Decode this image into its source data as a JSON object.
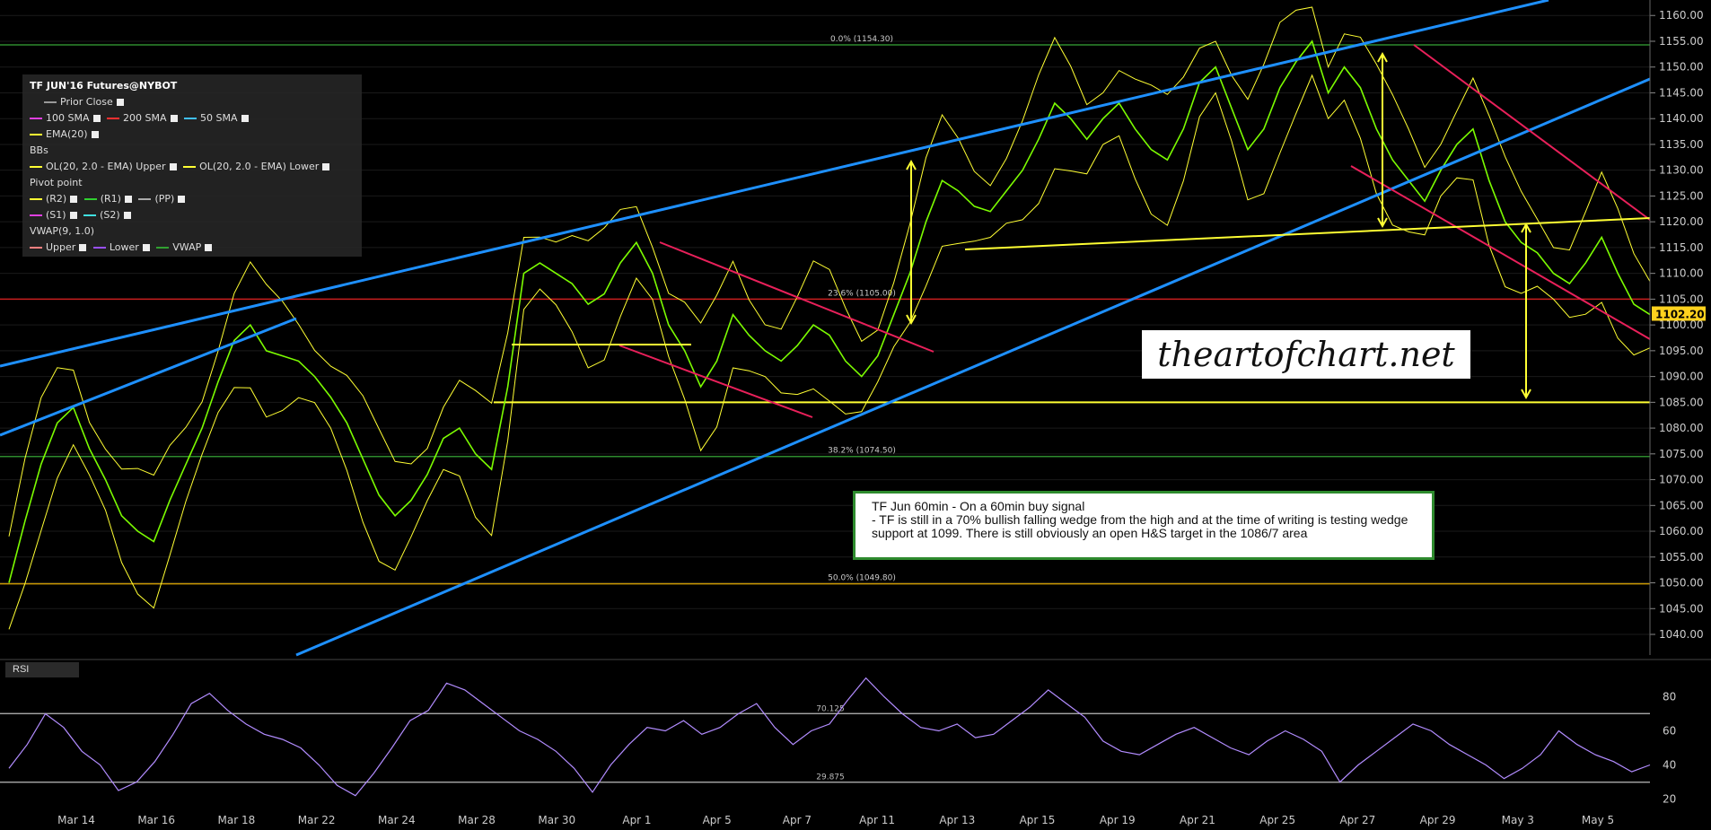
{
  "legend": {
    "title": "TF JUN'16 Futures@NYBOT",
    "prior_close": "Prior Close",
    "sma100": "100 SMA",
    "sma200": "200 SMA",
    "sma50": "50 SMA",
    "ema20": "EMA(20)",
    "bbs": "BBs",
    "bb_upper": "OL(20, 2.0 - EMA) Upper",
    "bb_lower": "OL(20, 2.0 - EMA) Lower",
    "pivot": "Pivot point",
    "r2": "(R2)",
    "r1": "(R1)",
    "pp": "(PP)",
    "s1": "(S1)",
    "s2": "(S2)",
    "vwap_title": "VWAP(9, 1.0)",
    "vwap_upper": "Upper",
    "vwap_lower": "Lower",
    "vwap": "VWAP"
  },
  "note": {
    "line1": "TF Jun 60min - On a 60min buy signal",
    "line2": "- TF is still in a 70% bullish falling wedge from the high and at the time of writing is testing wedge support at 1099. There is still obviously an open H&S target in the 1086/7 area"
  },
  "watermark": "theartofchart.net",
  "rsi_label": "RSI",
  "colors": {
    "trend_blue": "#1e90ff",
    "wedge_red": "#e8205a",
    "level_yellow": "#ffff33",
    "price_green": "#7cfc00",
    "rsi": "#b28cff",
    "fib_green": "#2e8b2e",
    "close_red": "#c81e1e"
  },
  "chart_data": [
    {
      "type": "line",
      "title": "",
      "x_tick_labels": [
        "Mar 14",
        "Mar 16",
        "Mar 18",
        "Mar 22",
        "Mar 24",
        "Mar 28",
        "Mar 30",
        "Apr 1",
        "Apr 5",
        "Apr 7",
        "Apr 11",
        "Apr 13",
        "Apr 15",
        "Apr 19",
        "Apr 21",
        "Apr 25",
        "Apr 27",
        "Apr 29",
        "May 3",
        "May 5"
      ],
      "y_tick_labels": [
        "1040.00",
        "1045.00",
        "1050.00",
        "1055.00",
        "1060.00",
        "1065.00",
        "1070.00",
        "1075.00",
        "1080.00",
        "1085.00",
        "1090.00",
        "1095.00",
        "1100.00",
        "1105.00",
        "1110.00",
        "1115.00",
        "1120.00",
        "1125.00",
        "1130.00",
        "1135.00",
        "1140.00",
        "1145.00",
        "1150.00",
        "1155.00",
        "1160.00"
      ],
      "ylim": [
        1036,
        1163
      ],
      "current_price": "1102.20",
      "fib_levels": [
        {
          "label": "0.0% (1154.30)",
          "value": 1154.3
        },
        {
          "label": "23.6% (1105.00)",
          "value": 1105.0
        },
        {
          "label": "38.2% (1074.50)",
          "value": 1074.5
        },
        {
          "label": "50.0% (1049.80)",
          "value": 1049.8
        }
      ],
      "support_level": 1085,
      "series": [
        {
          "values": [
            1050,
            1062,
            1073,
            1081,
            1084,
            1076,
            1070,
            1063,
            1060,
            1058,
            1066,
            1073,
            1080,
            1089,
            1097,
            1100,
            1095,
            1094,
            1093,
            1090,
            1086,
            1081,
            1074,
            1067,
            1063,
            1066,
            1071,
            1078,
            1080,
            1075,
            1072,
            1088,
            1110,
            1112,
            1110,
            1108,
            1104,
            1106,
            1112,
            1116,
            1110,
            1100,
            1095,
            1088,
            1093,
            1102,
            1098,
            1095,
            1093,
            1096,
            1100,
            1098,
            1093,
            1090,
            1094,
            1102,
            1110,
            1120,
            1128,
            1126,
            1123,
            1122,
            1126,
            1130,
            1136,
            1143,
            1140,
            1136,
            1140,
            1143,
            1138,
            1134,
            1132,
            1138,
            1147,
            1150,
            1142,
            1134,
            1138,
            1146,
            1151,
            1155,
            1145,
            1150,
            1146,
            1138,
            1132,
            1128,
            1124,
            1130,
            1135,
            1138,
            1128,
            1120,
            1116,
            1114,
            1110,
            1108,
            1112,
            1117,
            1110,
            1104,
            1102
          ]
        }
      ]
    },
    {
      "type": "line",
      "title": "",
      "y_tick_labels": [
        "20",
        "40",
        "60",
        "80"
      ],
      "ylim": [
        15,
        95
      ],
      "levels": [
        {
          "label": "70.125",
          "value": 70.125
        },
        {
          "label": "29.875",
          "value": 29.875
        }
      ],
      "series": [
        {
          "values": [
            38,
            52,
            70,
            62,
            48,
            40,
            25,
            30,
            42,
            58,
            76,
            82,
            72,
            64,
            58,
            55,
            50,
            40,
            28,
            22,
            35,
            50,
            66,
            72,
            88,
            84,
            76,
            68,
            60,
            55,
            48,
            38,
            24,
            40,
            52,
            62,
            60,
            66,
            58,
            62,
            70,
            76,
            62,
            52,
            60,
            64,
            78,
            91,
            80,
            70,
            62,
            60,
            64,
            56,
            58,
            66,
            74,
            84,
            76,
            68,
            54,
            48,
            46,
            52,
            58,
            62,
            56,
            50,
            46,
            54,
            60,
            55,
            48,
            30,
            40,
            48,
            56,
            64,
            60,
            52,
            46,
            40,
            32,
            38,
            46,
            60,
            52,
            46,
            42,
            36,
            40
          ]
        }
      ]
    }
  ]
}
